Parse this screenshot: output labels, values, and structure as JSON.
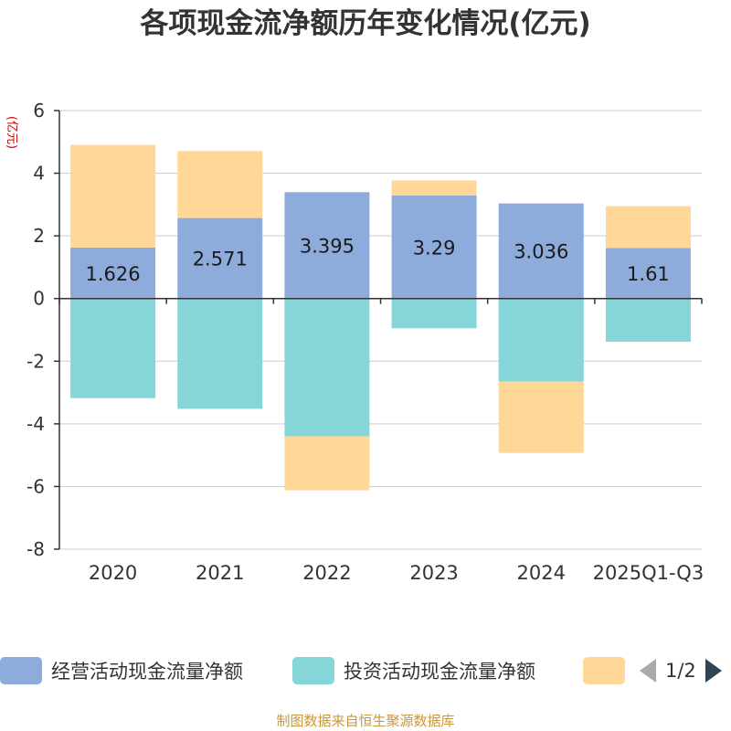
{
  "chart_data": {
    "type": "bar",
    "stacked": true,
    "title": "各项现金流净额历年变化情况(亿元)",
    "ylabel": "(亿元)",
    "xlabel": "",
    "ylim": [
      -8,
      6
    ],
    "yticks": [
      -8,
      -6,
      -4,
      -2,
      0,
      2,
      4,
      6
    ],
    "categories": [
      "2020",
      "2021",
      "2022",
      "2023",
      "2024",
      "2025Q1-Q3"
    ],
    "series": [
      {
        "name": "经营活动现金流量净额",
        "color": "#8eacdb",
        "values": [
          1.626,
          2.571,
          3.395,
          3.29,
          3.036,
          1.61
        ],
        "labels": [
          "1.626",
          "2.571",
          "3.395",
          "3.29",
          "3.036",
          "1.61"
        ]
      },
      {
        "name": "投资活动现金流量净额",
        "color": "#86d5d8",
        "values": [
          -3.18,
          -3.52,
          -4.4,
          -0.95,
          -2.65,
          -1.38
        ]
      },
      {
        "name": "",
        "color": "#ffd898",
        "values": [
          3.28,
          2.14,
          -1.72,
          0.48,
          -2.28,
          1.34
        ]
      }
    ],
    "legend_position": "bottom"
  },
  "legend": {
    "item1": "经营活动现金流量净额",
    "item2": "投资活动现金流量净额",
    "page": "1/2"
  },
  "source": "制图数据来自恒生聚源数据库"
}
